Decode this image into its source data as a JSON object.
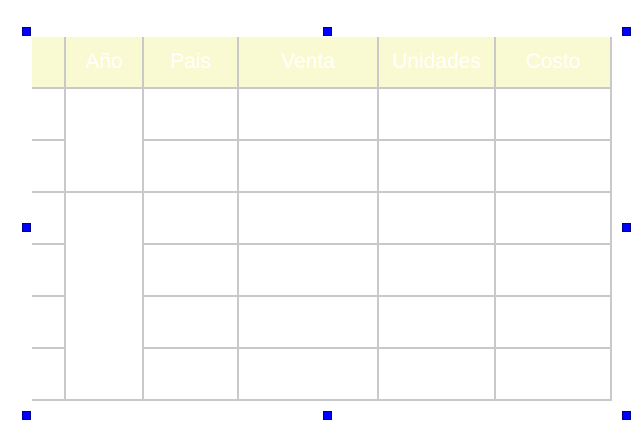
{
  "colors": {
    "header_bg": "#fafad2",
    "header_text": "#ffffff",
    "grid_line": "#c9c9c9",
    "handle": "#0000ff"
  },
  "table": {
    "columns": [
      "",
      "Año",
      "Pais",
      "Venta",
      "Unidades",
      "Costo"
    ],
    "row_count": 6
  },
  "selection": {
    "handle_icon": "selection-handle-icon"
  }
}
